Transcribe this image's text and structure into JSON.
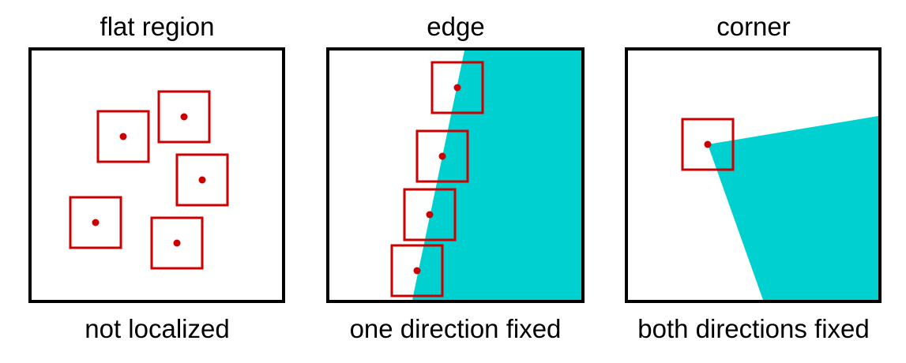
{
  "colors": {
    "window_stroke": "#cc0000",
    "center_dot": "#cc0000",
    "region_fill": "#00d0d0",
    "frame": "#000000"
  },
  "panels": [
    {
      "id": "flat",
      "title": "flat region",
      "caption": "not localized"
    },
    {
      "id": "edge",
      "title": "edge",
      "caption": "one direction fixed"
    },
    {
      "id": "corner",
      "title": "corner",
      "caption": "both directions fixed"
    }
  ]
}
